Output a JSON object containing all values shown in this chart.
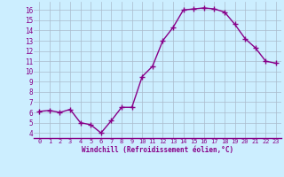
{
  "x": [
    0,
    1,
    2,
    3,
    4,
    5,
    6,
    7,
    8,
    9,
    10,
    11,
    12,
    13,
    14,
    15,
    16,
    17,
    18,
    19,
    20,
    21,
    22,
    23
  ],
  "y": [
    6.1,
    6.2,
    6.0,
    6.3,
    5.0,
    4.8,
    4.0,
    5.2,
    6.5,
    6.5,
    9.5,
    10.5,
    13.0,
    14.3,
    16.0,
    16.1,
    16.2,
    16.1,
    15.8,
    14.6,
    13.2,
    12.3,
    11.0,
    10.8
  ],
  "xlabel": "Windchill (Refroidissement éolien,°C)",
  "ylim": [
    3.5,
    16.8
  ],
  "xlim": [
    -0.5,
    23.5
  ],
  "line_color": "#880088",
  "marker": "+",
  "bg_color": "#cceeff",
  "grid_color": "#aabbcc",
  "tick_color": "#880088",
  "label_color": "#880088",
  "yticks": [
    4,
    5,
    6,
    7,
    8,
    9,
    10,
    11,
    12,
    13,
    14,
    15,
    16
  ],
  "xticks": [
    0,
    1,
    2,
    3,
    4,
    5,
    6,
    7,
    8,
    9,
    10,
    11,
    12,
    13,
    14,
    15,
    16,
    17,
    18,
    19,
    20,
    21,
    22,
    23
  ]
}
